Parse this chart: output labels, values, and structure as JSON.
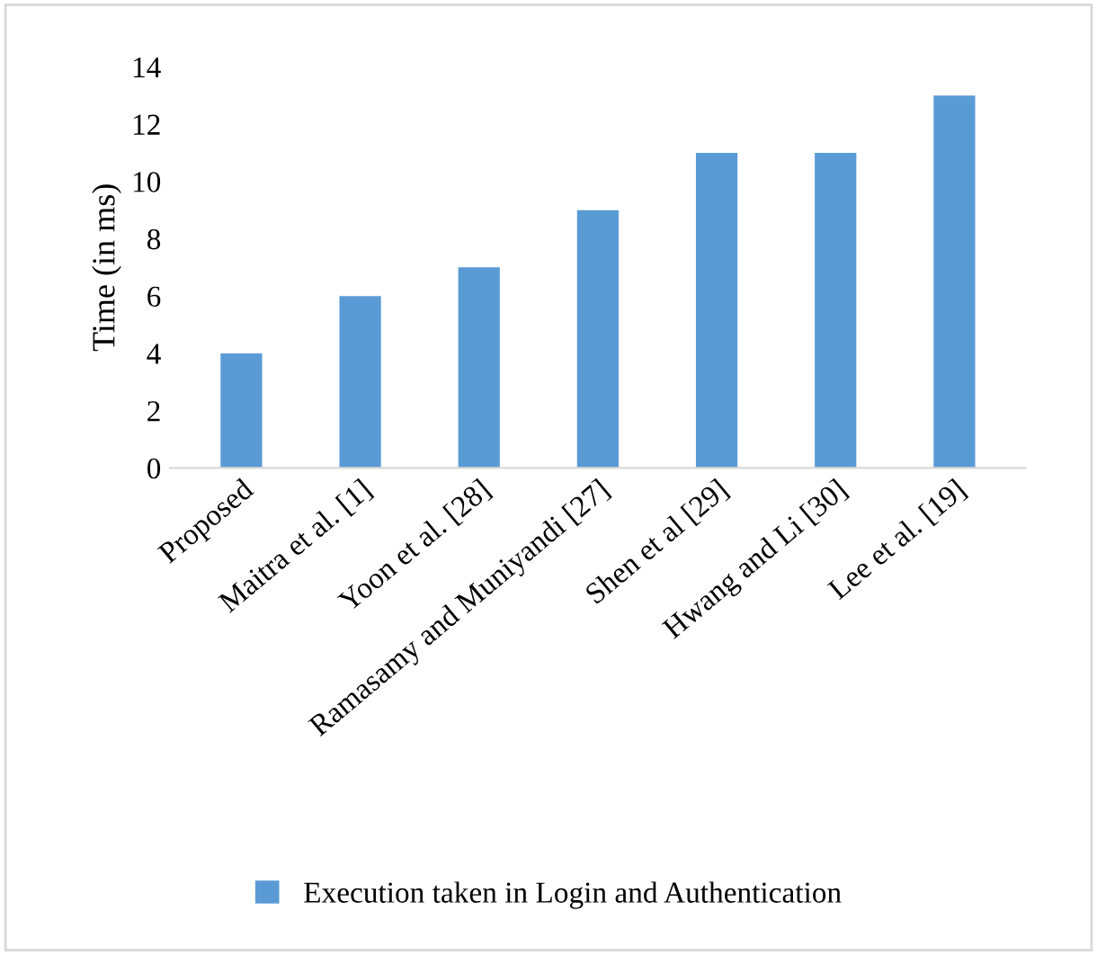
{
  "chart_data": {
    "type": "bar",
    "ylabel": "Time (in ms)",
    "categories": [
      "Proposed",
      "Maitra et al. [1]",
      "Yoon et al. [28]",
      "Ramasamy and Muniyandi [27]",
      "Shen et al [29]",
      "Hwang and Li [30]",
      "Lee et al. [19]"
    ],
    "series": [
      {
        "name": "Execution taken in Login and Authentication",
        "color": "#5b9bd5",
        "values": [
          4,
          6,
          7,
          9,
          11,
          11,
          13
        ]
      }
    ],
    "ylim": [
      0,
      14
    ],
    "yticks": [
      0,
      2,
      4,
      6,
      8,
      10,
      12,
      14
    ],
    "grid": false,
    "legend": "bottom"
  }
}
